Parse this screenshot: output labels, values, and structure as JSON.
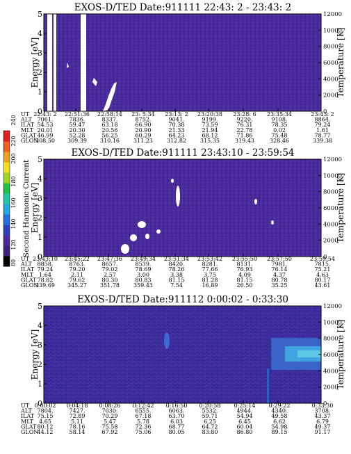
{
  "chart_data": [
    {
      "type": "heatmap",
      "title": "EXOS-D/TED   Date:911111  22:43: 2 - 23:43: 2",
      "ylabel": "Energy [eV]",
      "ylabel_right": "Temperature [K]",
      "ylim": [
        0,
        5
      ],
      "ylim_right": [
        0,
        12000
      ],
      "y_ticks": [
        "0",
        "1",
        "2",
        "3",
        "4",
        "5"
      ],
      "y_ticks_right": [
        "0",
        "2000",
        "4000",
        "6000",
        "8000",
        "10000",
        "12000"
      ],
      "orbit_table": {
        "row_labels": [
          "UT",
          "ALT",
          "ILAT",
          "MLT",
          "GLAT",
          "GLON"
        ],
        "columns": [
          [
            "22:43: 2",
            "7061.",
            "54.53",
            "20.01",
            "46.99",
            "308.50"
          ],
          [
            "22:51:36",
            "7836.",
            "59.47",
            "20.30",
            "52.28",
            "309.39"
          ],
          [
            "22:58:14",
            "8337.",
            "63.18",
            "20.56",
            "56.25",
            "310.16"
          ],
          [
            "23: 5:34",
            "8752.",
            "66.90",
            "20.90",
            "60.29",
            "311.23"
          ],
          [
            "23:13: 2",
            "9041.",
            "70.38",
            "21.33",
            "64.23",
            "312.82"
          ],
          [
            "23:20:38",
            "9199.",
            "73.59",
            "21.94",
            "68.12",
            "315.35"
          ],
          [
            "23:28: 6",
            "9220.",
            "76.31",
            "22.78",
            "71.86",
            "319.43"
          ],
          [
            "23:35:34",
            "9108.",
            "78.35",
            "0.02",
            "75.48",
            "328.46"
          ],
          [
            "23:43: 2",
            "8864.",
            "79.24",
            "1.61",
            "78.77",
            "339.38"
          ]
        ]
      }
    },
    {
      "type": "heatmap",
      "title": "EXOS-D/TED   Date:911111  23:43:10 - 23:59:54",
      "ylabel": "Energy [eV]",
      "ylabel_right": "Temperature [K]",
      "ylim": [
        0,
        5
      ],
      "ylim_right": [
        0,
        12000
      ],
      "y_ticks": [
        "0",
        "1",
        "2",
        "3",
        "4",
        "5"
      ],
      "y_ticks_right": [
        "0",
        "2000",
        "4000",
        "6000",
        "8000",
        "10000",
        "12000"
      ],
      "colorbar": {
        "label": "Second Harmonic Current",
        "ticks": [
          "80",
          "120",
          "140",
          "160",
          "180",
          "200",
          "220",
          "240"
        ]
      },
      "orbit_table": {
        "row_labels": [
          "UT",
          "ALT",
          "ILAT",
          "MLT",
          "GLAT",
          "GLON"
        ],
        "columns": [
          [
            "23:43:10",
            "8858.",
            "79.24",
            "1.64",
            "78.82",
            "339.69"
          ],
          [
            "23:45:22",
            "8763.",
            "79.20",
            "2.11",
            "79.62",
            "345.27"
          ],
          [
            "23:47:36",
            "8657.",
            "79.02",
            "2.57",
            "80.30",
            "351.78"
          ],
          [
            "23:49:34",
            "8539.",
            "78.69",
            "3.00",
            "80.83",
            "359.43"
          ],
          [
            "23:51:34",
            "8420.",
            "78.26",
            "3.38",
            "81.15",
            "7.54"
          ],
          [
            "23:53:42",
            "8281.",
            "77.66",
            "3.75",
            "81.28",
            "16.89"
          ],
          [
            "23:55:50",
            "8131.",
            "76.93",
            "4.09",
            "81.15",
            "26.50"
          ],
          [
            "23:57:50",
            "7981.",
            "76.14",
            "4.37",
            "80.78",
            "35.25"
          ],
          [
            "23:59:54",
            "7815.",
            "75.21",
            "4.63",
            "80.17",
            "43.61"
          ]
        ]
      }
    },
    {
      "type": "heatmap",
      "title": "EXOS-D/TED   Date:911112  0:00:02 - 0:33:30",
      "ylabel": "Energy [eV]",
      "ylabel_right": "Temperature [K]",
      "ylim": [
        0,
        5
      ],
      "ylim_right": [
        0,
        12000
      ],
      "y_ticks": [
        "0",
        "1",
        "2",
        "3",
        "4",
        "5"
      ],
      "y_ticks_right": [
        "0",
        "2000",
        "4000",
        "6000",
        "8000",
        "10000",
        "12000"
      ],
      "orbit_table": {
        "row_labels": [
          "UT",
          "ALT",
          "ILAT",
          "MLT",
          "GLAT",
          "GLON"
        ],
        "columns": [
          [
            "0:00:02",
            "7804.",
            "75.15",
            "4.65",
            "80.12",
            "44.12"
          ],
          [
            "0:04:18",
            "7427.",
            "72.89",
            "5.11",
            "78.16",
            "58.14"
          ],
          [
            "0:08:26",
            "7030.",
            "70.29",
            "5.47",
            "75.58",
            "67.92"
          ],
          [
            "0:12:42",
            "6555.",
            "67.18",
            "5.78",
            "72.36",
            "75.06"
          ],
          [
            "0:16:50",
            "6063.",
            "63.70",
            "6.03",
            "68.77",
            "80.05"
          ],
          [
            "0:20:58",
            "5532.",
            "59.71",
            "6.25",
            "64.72",
            "83.80"
          ],
          [
            "0:25:14",
            "4944.",
            "54.94",
            "6.45",
            "60.04",
            "86.80"
          ],
          [
            "0:29:22",
            "4340.",
            "49.58",
            "6.62",
            "54.98",
            "89.15"
          ],
          [
            "0:33:30",
            "3708.",
            "43.37",
            "6.79",
            "49.37",
            "91.17"
          ]
        ]
      }
    }
  ]
}
